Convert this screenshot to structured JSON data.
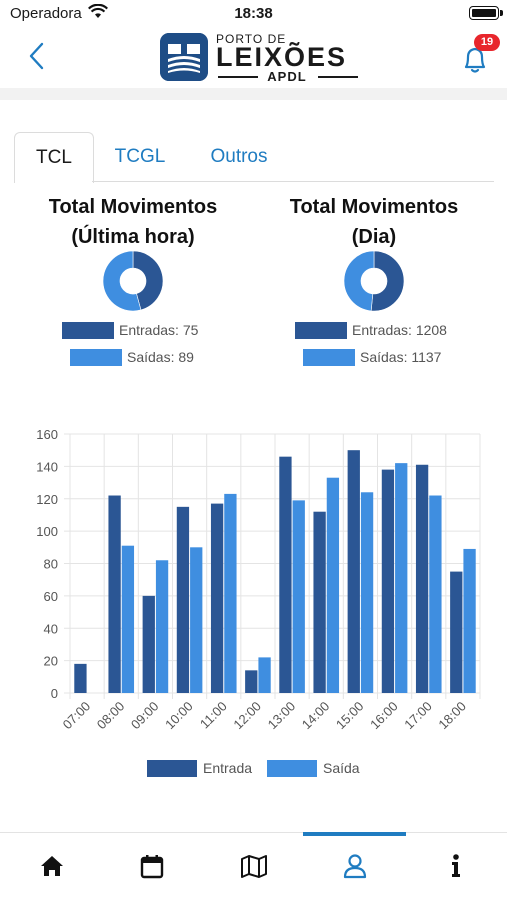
{
  "status": {
    "carrier": "Operadora",
    "time": "18:38"
  },
  "header": {
    "logo_small": "PORTO DE",
    "logo_big": "LEIXÕES",
    "logo_sub": "APDL",
    "notification_count": "19"
  },
  "tabs": [
    {
      "label": "TCL",
      "active": true
    },
    {
      "label": "TCGL",
      "active": false
    },
    {
      "label": "Outros",
      "active": false
    }
  ],
  "summary": {
    "hour": {
      "title_line1": "Total Movimentos",
      "title_line2": "(Última hora)",
      "entradas_label": "Entradas: 75",
      "saidas_label": "Saídas: 89",
      "entradas": 75,
      "saidas": 89
    },
    "day": {
      "title_line1": "Total Movimentos",
      "title_line2": "(Dia)",
      "entradas_label": "Entradas: 1208",
      "saidas_label": "Saídas: 1137",
      "entradas": 1208,
      "saidas": 1137
    }
  },
  "chart_data": {
    "type": "bar",
    "categories": [
      "07:00",
      "08:00",
      "09:00",
      "10:00",
      "11:00",
      "12:00",
      "13:00",
      "14:00",
      "15:00",
      "16:00",
      "17:00",
      "18:00"
    ],
    "series": [
      {
        "name": "Entrada",
        "values": [
          18,
          122,
          60,
          115,
          117,
          14,
          146,
          112,
          150,
          138,
          141,
          75
        ],
        "color": "#2b5694"
      },
      {
        "name": "Saída",
        "values": [
          0,
          91,
          82,
          90,
          123,
          22,
          119,
          133,
          124,
          142,
          122,
          89
        ],
        "color": "#3f8ee0"
      }
    ],
    "yticks": [
      0,
      20,
      40,
      60,
      80,
      100,
      120,
      140,
      160
    ],
    "ylim": [
      0,
      160
    ],
    "grid": true,
    "legend_position": "bottom"
  },
  "colors": {
    "entrada": "#2b5694",
    "saida": "#3f8ee0",
    "accent": "#1f7cc1",
    "badge": "#e8262c"
  },
  "tabbar": {
    "items": [
      "home-icon",
      "calendar-icon",
      "map-icon",
      "user-icon",
      "info-icon"
    ],
    "active": "user-icon"
  }
}
